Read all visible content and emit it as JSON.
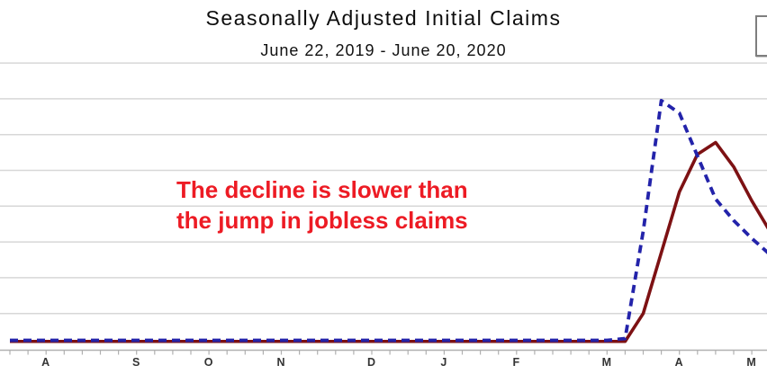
{
  "header": {
    "title": "Seasonally Adjusted Initial Claims",
    "subtitle": "June 22, 2019 - June 20, 2020"
  },
  "annotation": {
    "line1": "The decline is slower than",
    "line2": "the jump in jobless claims",
    "color": "#ed1b24"
  },
  "legend_box": {
    "visible_text": "",
    "note_color": "#7e7e7e"
  },
  "chart_data": {
    "type": "line",
    "title": "Seasonally Adjusted Initial Claims",
    "subtitle": "June 22, 2019 - June 20, 2020",
    "grid": true,
    "y_axis": {
      "visible_tick_labels": [],
      "estimated_range_millions": [
        0,
        8
      ],
      "estimated_gridline_interval_millions": 1,
      "gridline_color": "#d7d7d7",
      "axis_color": "#b0b0b0"
    },
    "x_axis": {
      "unit": "weeks",
      "tick_interval": "1 week",
      "month_tick_labels": [
        "A",
        "S",
        "O",
        "N",
        "D",
        "J",
        "F",
        "M",
        "A",
        "M"
      ]
    },
    "month_labels": [
      {
        "label": "A",
        "week": 2
      },
      {
        "label": "S",
        "week": 7
      },
      {
        "label": "O",
        "week": 11
      },
      {
        "label": "N",
        "week": 15
      },
      {
        "label": "D",
        "week": 20
      },
      {
        "label": "J",
        "week": 24
      },
      {
        "label": "F",
        "week": 28
      },
      {
        "label": "M",
        "week": 33
      },
      {
        "label": "A",
        "week": 37
      },
      {
        "label": "M",
        "week": 41
      }
    ],
    "series": [
      {
        "name": "weekly initial claims (blue dashed line)",
        "style": "dashed",
        "color": "#2323aa",
        "values_millions": [
          0.25,
          0.25,
          0.25,
          0.25,
          0.25,
          0.25,
          0.25,
          0.25,
          0.25,
          0.25,
          0.25,
          0.25,
          0.25,
          0.25,
          0.25,
          0.25,
          0.25,
          0.25,
          0.25,
          0.25,
          0.25,
          0.25,
          0.25,
          0.25,
          0.25,
          0.25,
          0.25,
          0.25,
          0.25,
          0.25,
          0.25,
          0.25,
          0.25,
          0.25,
          0.3,
          3.3,
          6.95,
          6.6,
          5.4,
          4.2,
          3.6,
          3.1,
          2.65
        ]
      },
      {
        "name": "4-week average of claims (dark red solid line)",
        "style": "solid",
        "color": "#7d1113",
        "values_millions": [
          0.22,
          0.22,
          0.22,
          0.22,
          0.22,
          0.22,
          0.22,
          0.22,
          0.22,
          0.22,
          0.22,
          0.22,
          0.22,
          0.22,
          0.22,
          0.22,
          0.22,
          0.22,
          0.22,
          0.22,
          0.22,
          0.22,
          0.22,
          0.22,
          0.22,
          0.22,
          0.22,
          0.22,
          0.22,
          0.22,
          0.22,
          0.22,
          0.22,
          0.22,
          0.22,
          1.0,
          2.7,
          4.4,
          5.45,
          5.78,
          5.1,
          4.15,
          3.3
        ]
      }
    ]
  }
}
